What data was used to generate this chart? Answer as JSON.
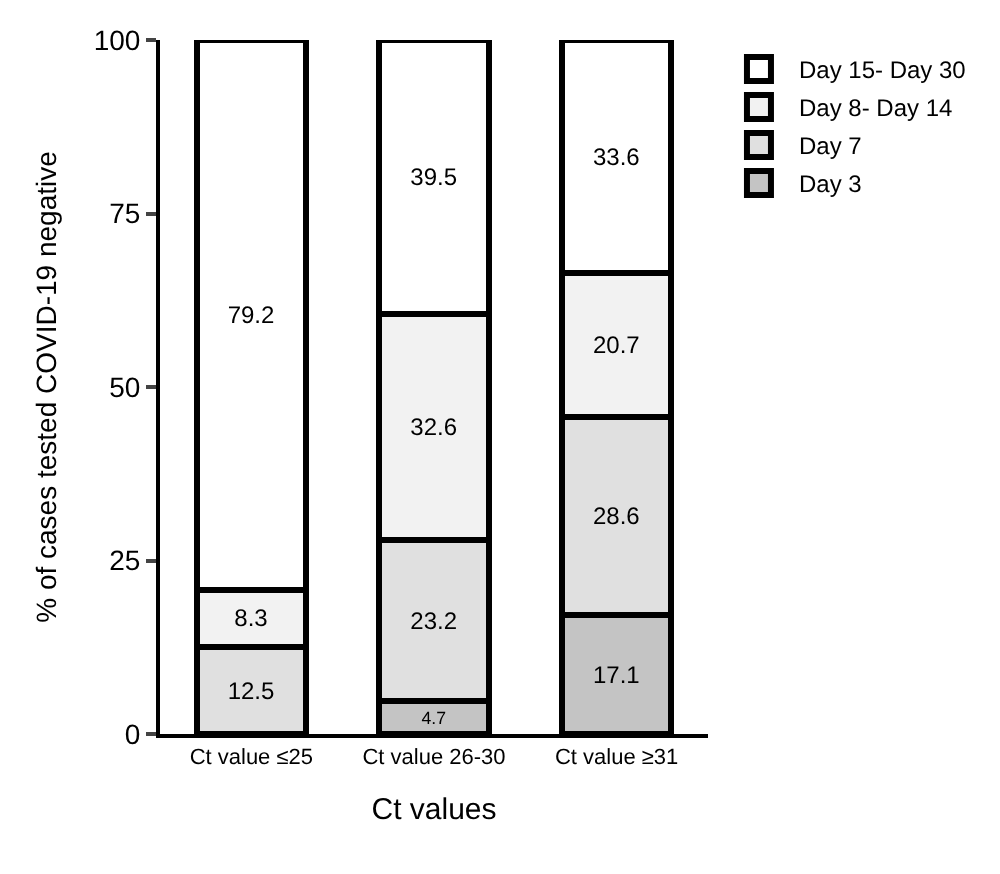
{
  "chart_data": {
    "type": "bar",
    "stacked": true,
    "xlabel": "Ct values",
    "ylabel": "% of cases tested COVID-19 negative",
    "categories": [
      "Ct value ≤25",
      "Ct value 26-30",
      "Ct value ≥31"
    ],
    "series": [
      {
        "name": "Day 3",
        "color": "#c4c4c4",
        "values": [
          null,
          4.7,
          17.1
        ]
      },
      {
        "name": "Day 7",
        "color": "#e0e0e0",
        "values": [
          12.5,
          23.2,
          28.6
        ]
      },
      {
        "name": "Day 8- Day 14",
        "color": "#f2f2f2",
        "values": [
          8.3,
          32.6,
          20.7
        ]
      },
      {
        "name": "Day 15- Day 30",
        "color": "#ffffff",
        "values": [
          79.2,
          39.5,
          33.6
        ]
      }
    ],
    "ylim": [
      0,
      100
    ],
    "yticks": [
      0,
      25,
      50,
      75,
      100
    ],
    "data_labels": true,
    "legend": "top right"
  }
}
